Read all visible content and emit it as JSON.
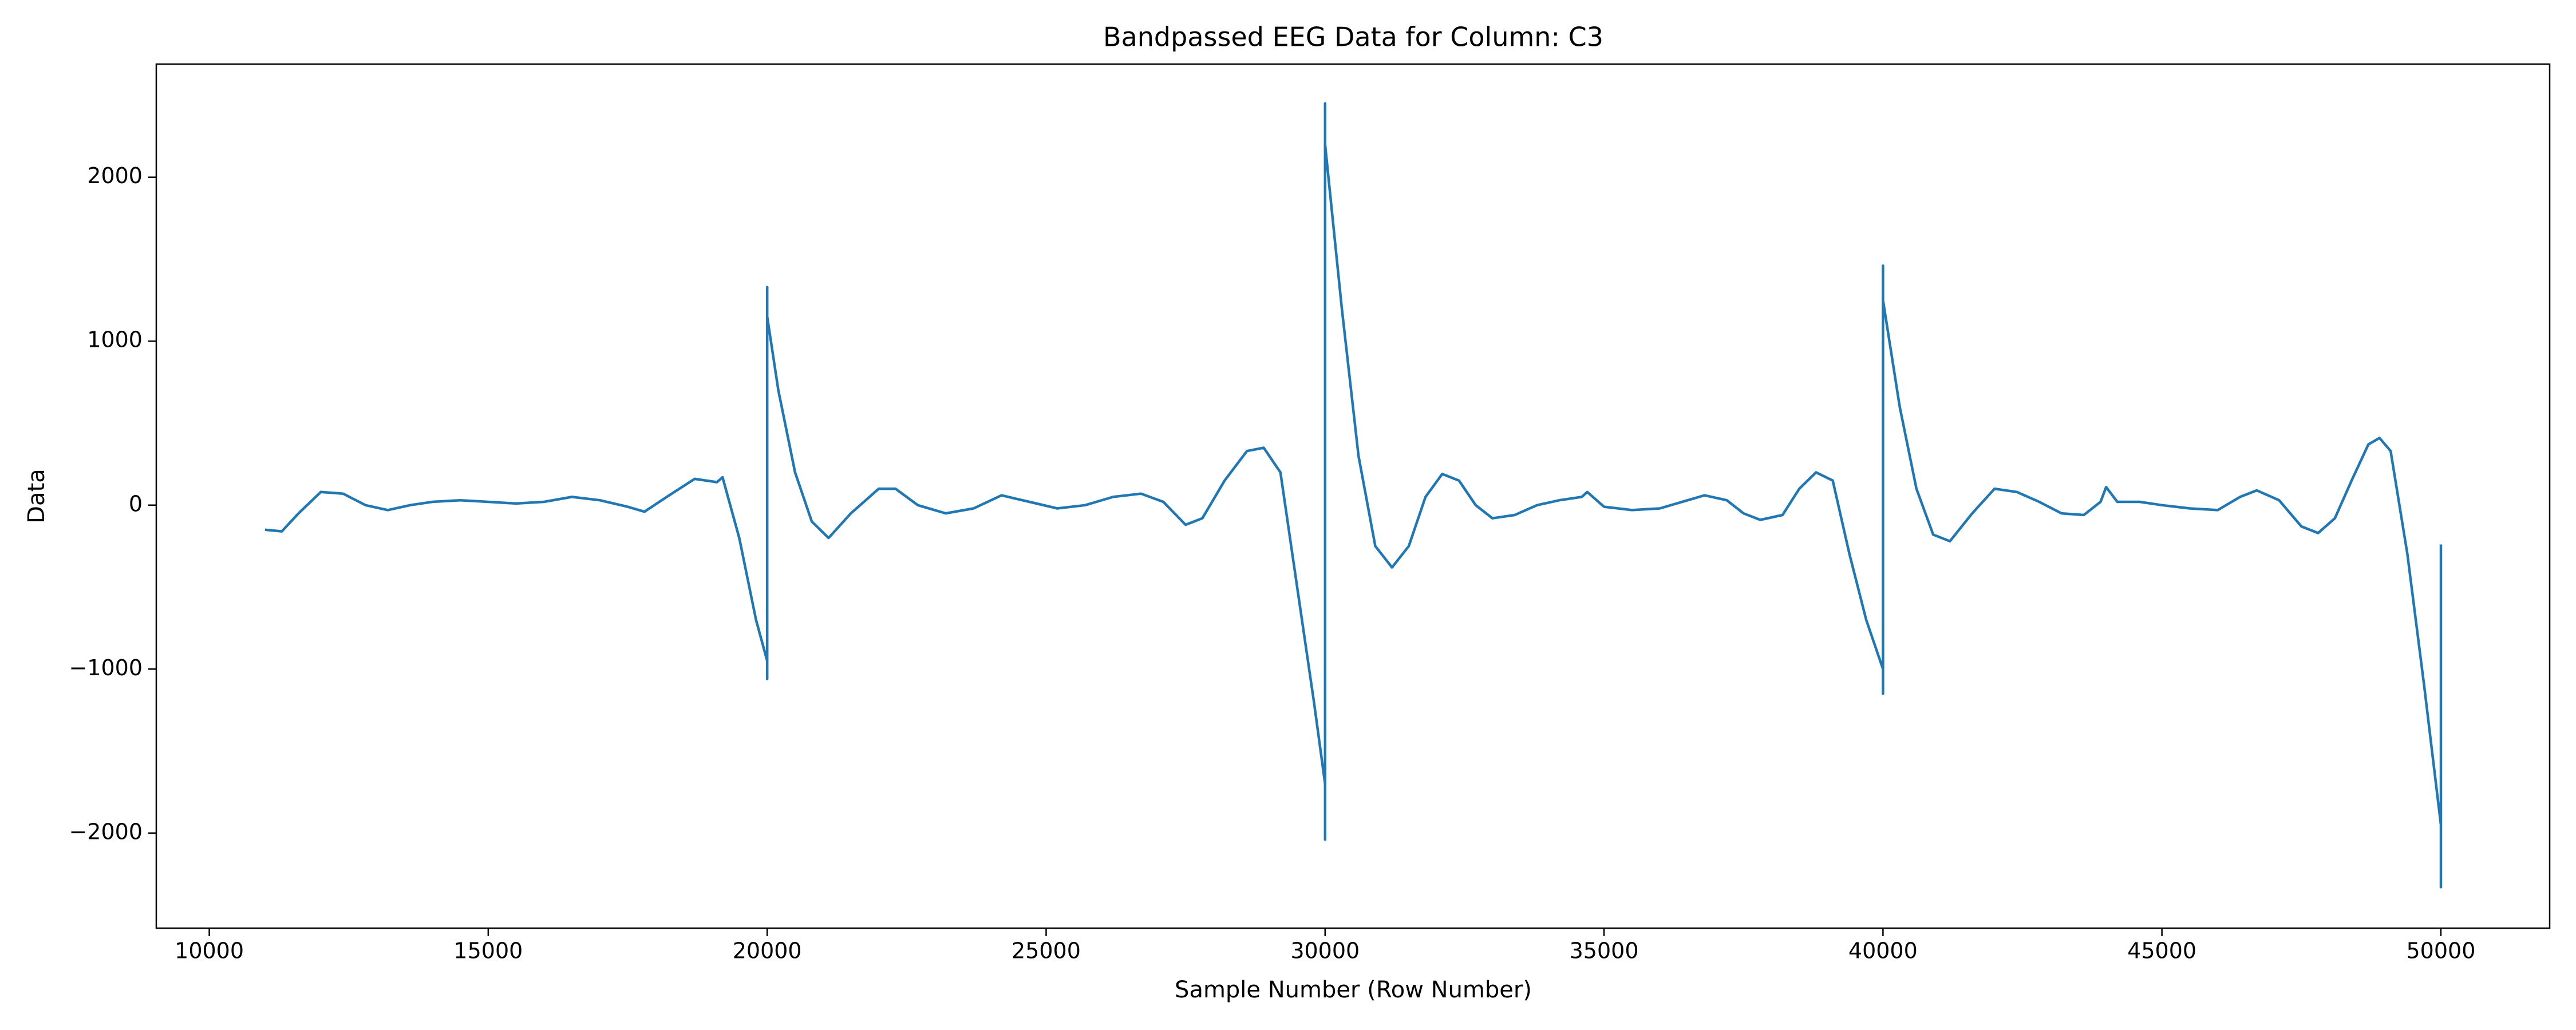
{
  "chart_data": {
    "type": "line",
    "title": "Bandpassed EEG Data for Column: C3",
    "x_label": "Sample Number (Row Number)",
    "y_label": "Data",
    "xlim": [
      9050,
      51950
    ],
    "ylim": [
      -2580,
      2690
    ],
    "xticks": [
      10000,
      15000,
      20000,
      25000,
      30000,
      35000,
      40000,
      45000,
      50000
    ],
    "yticks": [
      {
        "value": -2000,
        "label": "−2000"
      },
      {
        "value": -1000,
        "label": "−1000"
      },
      0,
      1000,
      2000
    ],
    "grid": false,
    "series": [
      {
        "color": "#1f77b4",
        "x": [
          11000,
          11300,
          11600,
          12000,
          12400,
          12800,
          13200,
          13600,
          14000,
          14500,
          15000,
          15500,
          16000,
          16500,
          17000,
          17500,
          17800,
          18200,
          18700,
          19100,
          19200,
          19500,
          19800,
          20000,
          20000,
          20000,
          20000,
          20200,
          20500,
          20800,
          21100,
          21500,
          22000,
          22300,
          22700,
          23200,
          23700,
          24200,
          24700,
          25200,
          25700,
          26200,
          26700,
          27100,
          27500,
          27800,
          28200,
          28600,
          28900,
          29200,
          29500,
          29800,
          30000,
          30000,
          30000,
          30000,
          30300,
          30600,
          30900,
          31200,
          31500,
          31800,
          32100,
          32400,
          32700,
          33000,
          33400,
          33800,
          34200,
          34600,
          34700,
          35000,
          35500,
          36000,
          36500,
          36800,
          37200,
          37500,
          37800,
          38200,
          38500,
          38800,
          39100,
          39400,
          39700,
          40000,
          40000,
          40000,
          40000,
          40300,
          40600,
          40900,
          41200,
          41600,
          42000,
          42400,
          42800,
          43200,
          43600,
          43900,
          44000,
          44200,
          44600,
          45000,
          45500,
          46000,
          46400,
          46700,
          47100,
          47500,
          47800,
          48100,
          48400,
          48700,
          48900,
          49100,
          49400,
          49700,
          50000,
          50000,
          50000
        ],
        "values": [
          -150,
          -160,
          -50,
          80,
          70,
          0,
          -30,
          0,
          20,
          30,
          20,
          10,
          20,
          50,
          30,
          -10,
          -40,
          50,
          160,
          140,
          170,
          -200,
          -700,
          -950,
          -1060,
          1330,
          1150,
          700,
          200,
          -100,
          -200,
          -50,
          100,
          100,
          0,
          -50,
          -20,
          60,
          20,
          -20,
          0,
          50,
          70,
          20,
          -120,
          -80,
          150,
          330,
          350,
          200,
          -500,
          -1200,
          -1700,
          -2040,
          2450,
          2200,
          1200,
          300,
          -250,
          -380,
          -250,
          50,
          190,
          150,
          0,
          -80,
          -60,
          0,
          30,
          50,
          80,
          -10,
          -30,
          -20,
          30,
          60,
          30,
          -50,
          -90,
          -60,
          100,
          200,
          150,
          -300,
          -700,
          -1000,
          -1150,
          1460,
          1250,
          600,
          100,
          -180,
          -220,
          -50,
          100,
          80,
          20,
          -50,
          -60,
          20,
          110,
          20,
          20,
          0,
          -20,
          -30,
          50,
          90,
          30,
          -130,
          -170,
          -80,
          150,
          370,
          410,
          330,
          -300,
          -1100,
          -1950,
          -2330,
          -240
        ]
      }
    ]
  }
}
